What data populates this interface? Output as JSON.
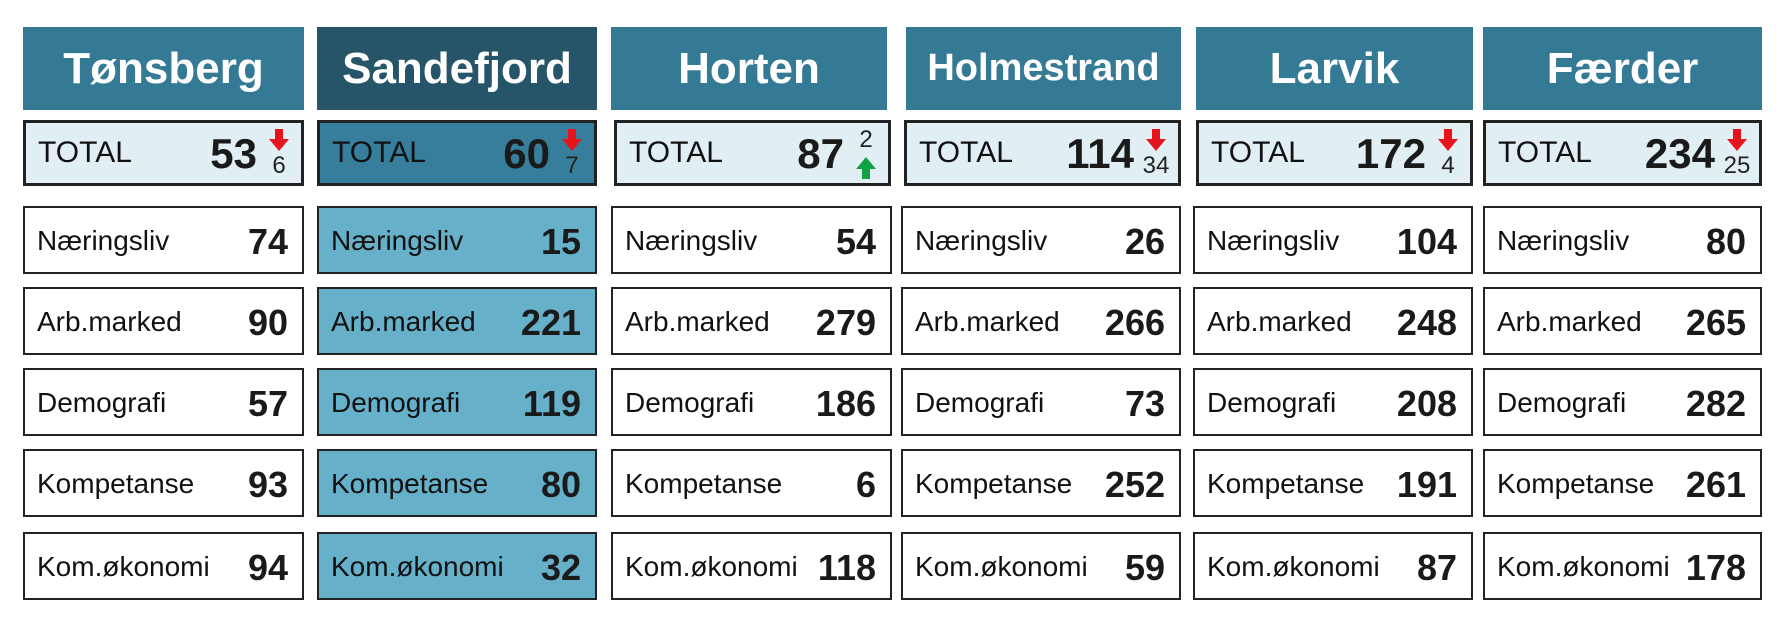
{
  "total_label": "TOTAL",
  "colors": {
    "header": "#357a95",
    "header_selected": "#265569",
    "selected_cells": "#66b0ca",
    "arrow_down": "#e8141b",
    "arrow_up": "#0fa345"
  },
  "columns": [
    {
      "name": "Tønsberg",
      "selected": false,
      "total": {
        "value": "53",
        "change": "6",
        "direction": "down"
      },
      "rows": [
        {
          "label": "Næringsliv",
          "value": "74"
        },
        {
          "label": "Arb.marked",
          "value": "90"
        },
        {
          "label": "Demografi",
          "value": "57"
        },
        {
          "label": "Kompetanse",
          "value": "93"
        },
        {
          "label": "Kom.økonomi",
          "value": "94"
        }
      ]
    },
    {
      "name": "Sandefjord",
      "selected": true,
      "total": {
        "value": "60",
        "change": "7",
        "direction": "down"
      },
      "rows": [
        {
          "label": "Næringsliv",
          "value": "15"
        },
        {
          "label": "Arb.marked",
          "value": "221"
        },
        {
          "label": "Demografi",
          "value": "119"
        },
        {
          "label": "Kompetanse",
          "value": "80"
        },
        {
          "label": "Kom.økonomi",
          "value": "32"
        }
      ]
    },
    {
      "name": "Horten",
      "selected": false,
      "total": {
        "value": "87",
        "change": "2",
        "direction": "up"
      },
      "rows": [
        {
          "label": "Næringsliv",
          "value": "54"
        },
        {
          "label": "Arb.marked",
          "value": "279"
        },
        {
          "label": "Demografi",
          "value": "186"
        },
        {
          "label": "Kompetanse",
          "value": "6"
        },
        {
          "label": "Kom.økonomi",
          "value": "118"
        }
      ]
    },
    {
      "name": "Holmestrand",
      "selected": false,
      "total": {
        "value": "114",
        "change": "34",
        "direction": "down"
      },
      "rows": [
        {
          "label": "Næringsliv",
          "value": "26"
        },
        {
          "label": "Arb.marked",
          "value": "266"
        },
        {
          "label": "Demografi",
          "value": "73"
        },
        {
          "label": "Kompetanse",
          "value": "252"
        },
        {
          "label": "Kom.økonomi",
          "value": "59"
        }
      ]
    },
    {
      "name": "Larvik",
      "selected": false,
      "total": {
        "value": "172",
        "change": "4",
        "direction": "down"
      },
      "rows": [
        {
          "label": "Næringsliv",
          "value": "104"
        },
        {
          "label": "Arb.marked",
          "value": "248"
        },
        {
          "label": "Demografi",
          "value": "208"
        },
        {
          "label": "Kompetanse",
          "value": "191"
        },
        {
          "label": "Kom.økonomi",
          "value": "87"
        }
      ]
    },
    {
      "name": "Færder",
      "selected": false,
      "total": {
        "value": "234",
        "change": "25",
        "direction": "down"
      },
      "rows": [
        {
          "label": "Næringsliv",
          "value": "80"
        },
        {
          "label": "Arb.marked",
          "value": "265"
        },
        {
          "label": "Demografi",
          "value": "282"
        },
        {
          "label": "Kompetanse",
          "value": "261"
        },
        {
          "label": "Kom.økonomi",
          "value": "178"
        }
      ]
    }
  ]
}
